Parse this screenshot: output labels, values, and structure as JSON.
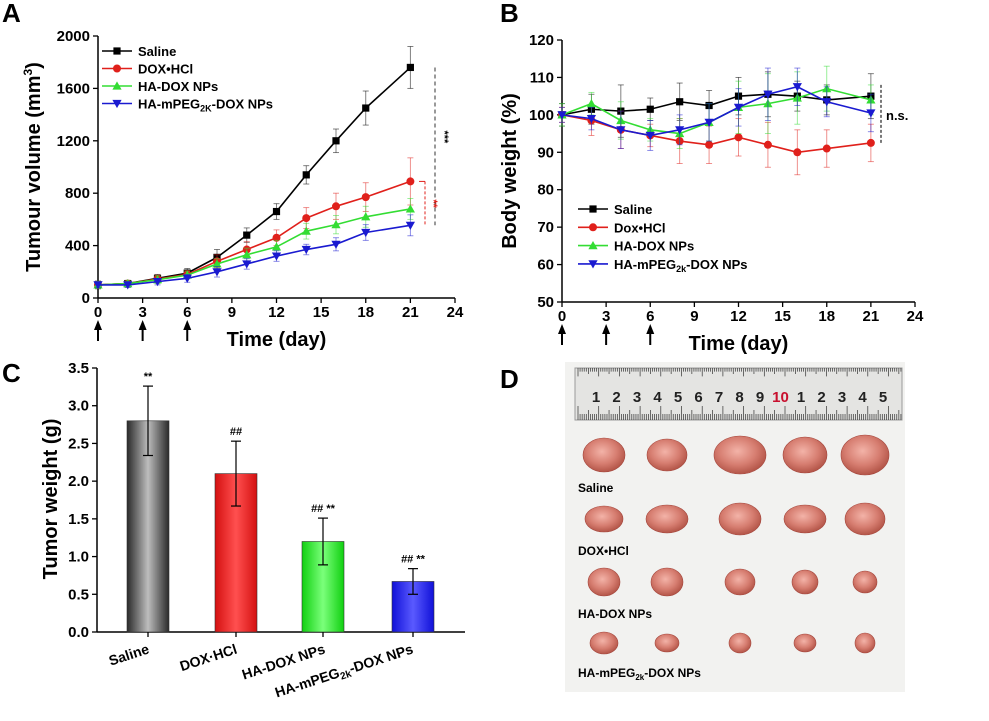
{
  "colors": {
    "saline": "#000000",
    "dox_hcl": "#e0201b",
    "ha_dox": "#33dd33",
    "ha_mpeg": "#1a1ad0",
    "bar_gray": "#7a7a7a",
    "bar_red": "#ee2020",
    "bar_green": "#22ee22",
    "bar_blue": "#2222ee"
  },
  "panel_d": {
    "letter": "D",
    "ruler_numbers": [
      "1",
      "2",
      "3",
      "4",
      "5",
      "6",
      "7",
      "8",
      "9",
      "10",
      "1",
      "2",
      "3",
      "4",
      "5"
    ],
    "row_labels": [
      "Saline",
      "DOX•HCl",
      "HA-DOX NPs",
      "HA-mPEG2k-DOX NPs"
    ],
    "photo_description_icon": "tumor-photo"
  },
  "chart_data": [
    {
      "panel": "A",
      "type": "line",
      "xlabel": "Time (day)",
      "ylabel": "Tumour volume (mm3)",
      "xlim": [
        0,
        24
      ],
      "ylim": [
        0,
        2000
      ],
      "xticks": [
        0,
        3,
        6,
        9,
        12,
        15,
        18,
        21,
        24
      ],
      "yticks": [
        0,
        400,
        800,
        1200,
        1600,
        2000
      ],
      "dosing_days": [
        0,
        3,
        6
      ],
      "legend_position": "top-left",
      "legend": [
        "Saline",
        "DOX•HCl",
        "HA-DOX NPs",
        "HA-mPEG2K-DOX NPs"
      ],
      "x": [
        0,
        2,
        4,
        6,
        8,
        10,
        12,
        14,
        16,
        18,
        21
      ],
      "series": [
        {
          "name": "Saline",
          "marker": "square",
          "values": [
            100,
            110,
            150,
            190,
            310,
            480,
            660,
            940,
            1200,
            1450,
            1760
          ],
          "err": [
            30,
            25,
            30,
            35,
            60,
            55,
            60,
            70,
            90,
            130,
            160
          ]
        },
        {
          "name": "DOX•HCl",
          "marker": "circle",
          "values": [
            100,
            110,
            145,
            180,
            280,
            370,
            460,
            610,
            700,
            770,
            890
          ],
          "err": [
            25,
            20,
            30,
            30,
            50,
            60,
            60,
            80,
            100,
            110,
            180
          ]
        },
        {
          "name": "HA-DOX NPs",
          "marker": "triangle-up",
          "values": [
            100,
            110,
            140,
            175,
            260,
            330,
            390,
            510,
            560,
            620,
            680
          ],
          "err": [
            25,
            20,
            30,
            30,
            40,
            50,
            50,
            60,
            70,
            80,
            80
          ]
        },
        {
          "name": "HA-mPEG2K-DOX NPs",
          "marker": "triangle-down",
          "values": [
            100,
            100,
            125,
            150,
            200,
            260,
            320,
            370,
            410,
            500,
            555
          ],
          "err": [
            20,
            20,
            25,
            30,
            40,
            40,
            40,
            40,
            50,
            60,
            80
          ]
        }
      ],
      "annotations": [
        "***",
        "**"
      ]
    },
    {
      "panel": "B",
      "type": "line",
      "xlabel": "Time (day)",
      "ylabel": "Body weight (%)",
      "xlim": [
        0,
        24
      ],
      "ylim": [
        50,
        120
      ],
      "xticks": [
        0,
        3,
        6,
        9,
        12,
        15,
        18,
        21,
        24
      ],
      "yticks": [
        50,
        60,
        70,
        80,
        90,
        100,
        110,
        120
      ],
      "dosing_days": [
        0,
        3,
        6
      ],
      "legend_position": "bottom-left",
      "legend": [
        "Saline",
        "Dox•HCl",
        "HA-DOX NPs",
        "HA-mPEG2k-DOX NPs"
      ],
      "x": [
        0,
        2,
        4,
        6,
        8,
        10,
        12,
        14,
        16,
        18,
        21
      ],
      "series": [
        {
          "name": "Saline",
          "marker": "square",
          "values": [
            100,
            101.5,
            101,
            101.5,
            103.5,
            102.5,
            105,
            105.5,
            105,
            104,
            105
          ],
          "err": [
            3,
            4,
            7,
            3,
            5,
            4,
            5,
            6,
            4,
            4,
            6
          ]
        },
        {
          "name": "Dox•HCl",
          "marker": "circle",
          "values": [
            100,
            98.5,
            96,
            94.5,
            93,
            92,
            94,
            92,
            90,
            91,
            92.5
          ],
          "err": [
            2,
            4,
            5,
            3,
            6,
            5,
            5,
            6,
            6,
            5,
            5
          ]
        },
        {
          "name": "HA-DOX NPs",
          "marker": "triangle-up",
          "values": [
            100,
            103,
            98.5,
            96,
            95,
            98,
            102,
            103,
            104.5,
            107,
            104
          ],
          "err": [
            3,
            3,
            5,
            3,
            4,
            5,
            7,
            8,
            7,
            6,
            4
          ]
        },
        {
          "name": "HA-mPEG2k-DOX NPs",
          "marker": "triangle-down",
          "values": [
            100,
            99,
            96,
            94.5,
            96,
            98,
            102,
            105.5,
            107.5,
            103.5,
            100.5
          ],
          "err": [
            2,
            3,
            5,
            4,
            4,
            5,
            5,
            7,
            5,
            4,
            5
          ]
        }
      ],
      "annotations": [
        "n.s."
      ]
    },
    {
      "panel": "C",
      "type": "bar",
      "ylabel": "Tumor weight (g)",
      "ylim": [
        0,
        3.5
      ],
      "yticks": [
        "0.0",
        "0.5",
        "1.0",
        "1.5",
        "2.0",
        "2.5",
        "3.0",
        "3.5"
      ],
      "categories": [
        "Saline",
        "DOX·HCl",
        "HA-DOX NPs",
        "HA-mPEG2k-DOX NPs"
      ],
      "values": [
        2.8,
        2.1,
        1.2,
        0.67
      ],
      "err": [
        0.46,
        0.43,
        0.31,
        0.17
      ],
      "significance": [
        "**",
        "##",
        "## **",
        "## **"
      ]
    }
  ]
}
